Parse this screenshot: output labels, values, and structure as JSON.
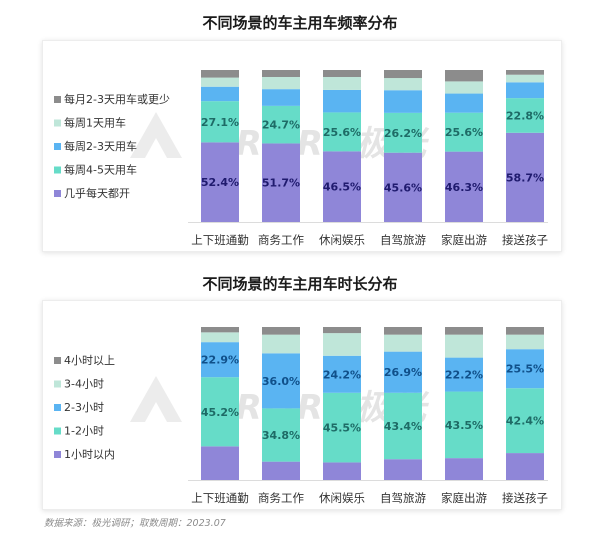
{
  "watermark_text": "URORA极光",
  "source_note": "数据来源：极光调研；取数周期：2023.07",
  "chart_data": [
    {
      "type": "bar",
      "stacked": true,
      "title": "不同场景的车主用车频率分布",
      "categories": [
        "上下班通勤",
        "商务工作",
        "休闲娱乐",
        "自驾旅游",
        "家庭出游",
        "接送孩子"
      ],
      "ylim": [
        0,
        100
      ],
      "legend_position": "left",
      "series": [
        {
          "name": "几乎每天都开",
          "values": [
            52.4,
            51.7,
            46.5,
            45.6,
            46.3,
            58.7
          ],
          "color": "#8f86d8",
          "labeled": true,
          "label_color": "#1f1a6e"
        },
        {
          "name": "每周4-5天用车",
          "values": [
            27.1,
            24.7,
            25.6,
            26.2,
            25.6,
            22.8
          ],
          "color": "#66dcc8",
          "labeled": true,
          "label_color": "#1e6b66"
        },
        {
          "name": "每周2-3天用车",
          "values": [
            9.5,
            11.0,
            14.8,
            14.9,
            12.6,
            10.4
          ],
          "color": "#5ab4f2",
          "labeled": false,
          "label_color": ""
        },
        {
          "name": "每周1天用车",
          "values": [
            6.0,
            8.0,
            8.5,
            8.0,
            8.0,
            5.0
          ],
          "color": "#bfe6d9",
          "labeled": false,
          "label_color": ""
        },
        {
          "name": "每月2-3天用车或更少",
          "values": [
            5.0,
            4.6,
            4.6,
            5.3,
            7.5,
            3.1
          ],
          "color": "#8c8c8c",
          "labeled": false,
          "label_color": ""
        }
      ]
    },
    {
      "type": "bar",
      "stacked": true,
      "title": "不同场景的车主用车时长分布",
      "categories": [
        "上下班通勤",
        "商务工作",
        "休闲娱乐",
        "自驾旅游",
        "家庭出游",
        "接送孩子"
      ],
      "ylim": [
        0,
        100
      ],
      "legend_position": "left",
      "series": [
        {
          "name": "1小时以内",
          "values": [
            22.0,
            12.0,
            11.5,
            13.6,
            14.3,
            17.6
          ],
          "color": "#8f86d8",
          "labeled": false,
          "label_color": ""
        },
        {
          "name": "1-2小时",
          "values": [
            45.2,
            34.8,
            45.5,
            43.4,
            43.5,
            42.4
          ],
          "color": "#66dcc8",
          "labeled": true,
          "label_color": "#1e6b66"
        },
        {
          "name": "2-3小时",
          "values": [
            22.9,
            36.0,
            24.2,
            26.9,
            22.2,
            25.5
          ],
          "color": "#5ab4f2",
          "labeled": true,
          "label_color": "#10508a"
        },
        {
          "name": "3-4小时",
          "values": [
            6.4,
            12.2,
            14.8,
            11.1,
            15.0,
            9.5
          ],
          "color": "#bfe6d9",
          "labeled": false,
          "label_color": ""
        },
        {
          "name": "4小时以上",
          "values": [
            3.5,
            5.0,
            4.0,
            5.0,
            5.0,
            5.0
          ],
          "color": "#8c8c8c",
          "labeled": false,
          "label_color": ""
        }
      ]
    }
  ]
}
